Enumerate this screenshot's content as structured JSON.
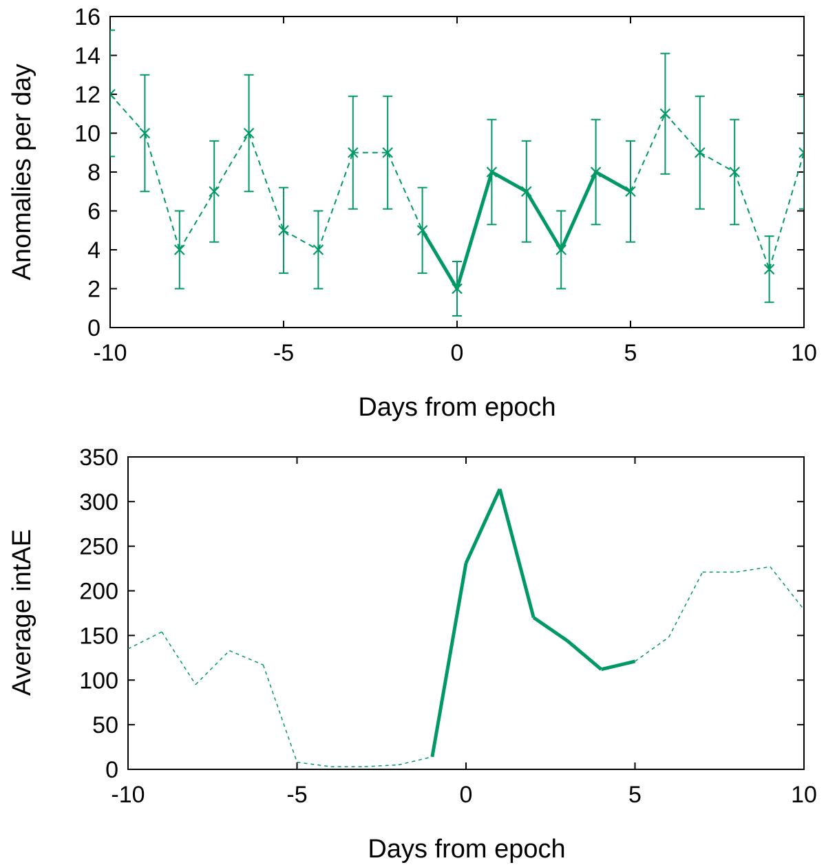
{
  "chart_data": [
    {
      "type": "line",
      "xlabel": "Days from epoch",
      "ylabel": "Anomalies per day",
      "xlim": [
        -10,
        10
      ],
      "ylim": [
        0,
        16
      ],
      "xticks": [
        "-10",
        "-5",
        "0",
        "5",
        "10"
      ],
      "yticks": [
        "0",
        "2",
        "4",
        "6",
        "8",
        "10",
        "12",
        "14",
        "16"
      ],
      "grid": false,
      "legend": "none",
      "color": "#009966",
      "markers": "x",
      "x": [
        -10,
        -9,
        -8,
        -7,
        -6,
        -5,
        -4,
        -3,
        -2,
        -1,
        0,
        1,
        2,
        3,
        4,
        5,
        6,
        7,
        8,
        9,
        10
      ],
      "y": [
        12,
        10,
        4,
        7,
        10,
        5,
        4,
        9,
        9,
        5,
        2,
        8,
        7,
        4,
        8,
        7,
        11,
        9,
        8,
        3,
        9
      ],
      "err_low": [
        8.8,
        7.0,
        2.0,
        4.4,
        7.0,
        2.8,
        2.0,
        6.1,
        6.1,
        2.8,
        0.6,
        5.3,
        4.4,
        2.0,
        5.3,
        4.4,
        7.9,
        6.1,
        5.3,
        1.3,
        6.1
      ],
      "err_high": [
        15.3,
        13.0,
        6.0,
        9.6,
        13.0,
        7.2,
        6.0,
        11.9,
        11.9,
        7.2,
        3.4,
        10.7,
        9.6,
        6.0,
        10.7,
        9.6,
        14.1,
        11.9,
        10.7,
        4.7,
        11.9
      ],
      "highlight_x": [
        -1,
        5
      ]
    },
    {
      "type": "line",
      "xlabel": "Days from epoch",
      "ylabel": "Average intAE",
      "xlim": [
        -10,
        10
      ],
      "ylim": [
        0,
        350
      ],
      "xticks": [
        "-10",
        "-5",
        "0",
        "5",
        "10"
      ],
      "yticks": [
        "0",
        "50",
        "100",
        "150",
        "200",
        "250",
        "300",
        "350"
      ],
      "grid": false,
      "legend": "none",
      "color": "#009966",
      "x": [
        -10,
        -9,
        -8,
        -7,
        -6,
        -5,
        -4,
        -3,
        -2,
        -1,
        0,
        1,
        2,
        3,
        4,
        5,
        6,
        7,
        8,
        9,
        10
      ],
      "y": [
        135,
        154,
        95,
        133,
        117,
        8,
        3,
        3,
        5,
        14,
        231,
        314,
        170,
        144,
        112,
        121,
        148,
        221,
        221,
        227,
        179
      ],
      "highlight_x": [
        -1,
        5
      ]
    }
  ]
}
